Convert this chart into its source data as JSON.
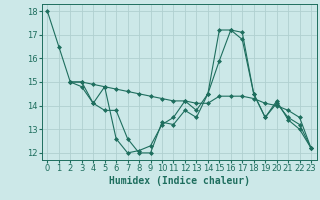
{
  "bg_color": "#cce8e8",
  "grid_color": "#b0d0d0",
  "line_color": "#1e6e5e",
  "marker_color": "#1e6e5e",
  "xlabel": "Humidex (Indice chaleur)",
  "xlabel_fontsize": 7,
  "tick_fontsize": 6,
  "xlim": [
    -0.5,
    23.5
  ],
  "ylim": [
    11.7,
    18.3
  ],
  "yticks": [
    12,
    13,
    14,
    15,
    16,
    17,
    18
  ],
  "xticks": [
    0,
    1,
    2,
    3,
    4,
    5,
    6,
    7,
    8,
    9,
    10,
    11,
    12,
    13,
    14,
    15,
    16,
    17,
    18,
    19,
    20,
    21,
    22,
    23
  ],
  "lines": [
    {
      "x": [
        0,
        1,
        2,
        3,
        4,
        5,
        6,
        7,
        8,
        9,
        10,
        11,
        12,
        13,
        14,
        15,
        16,
        17,
        18,
        19,
        20,
        21,
        22,
        23
      ],
      "y": [
        18,
        16.5,
        15,
        15,
        14.1,
        14.8,
        12.6,
        12.0,
        12.1,
        12.3,
        13.2,
        13.5,
        14.2,
        13.8,
        14.5,
        17.2,
        17.2,
        16.8,
        14.5,
        13.5,
        14.2,
        13.4,
        13.0,
        12.2
      ]
    },
    {
      "x": [
        2,
        3,
        4,
        5,
        6,
        7,
        8,
        9,
        10,
        11,
        12,
        13,
        14,
        15,
        16,
        17,
        18,
        19,
        20,
        21,
        22,
        23
      ],
      "y": [
        15.0,
        15.0,
        14.9,
        14.8,
        14.7,
        14.6,
        14.5,
        14.4,
        14.3,
        14.2,
        14.2,
        14.1,
        14.1,
        14.4,
        14.4,
        14.4,
        14.3,
        14.1,
        14.0,
        13.8,
        13.5,
        12.2
      ]
    },
    {
      "x": [
        2,
        3,
        4,
        5,
        6,
        7,
        8,
        9,
        10,
        11,
        12,
        13,
        14,
        15,
        16,
        17,
        18,
        19,
        20,
        21,
        22,
        23
      ],
      "y": [
        15.0,
        14.8,
        14.1,
        13.8,
        13.8,
        12.6,
        12.0,
        12.0,
        13.3,
        13.2,
        13.8,
        13.5,
        14.5,
        15.9,
        17.2,
        17.1,
        14.5,
        13.5,
        14.1,
        13.5,
        13.2,
        12.2
      ]
    }
  ]
}
